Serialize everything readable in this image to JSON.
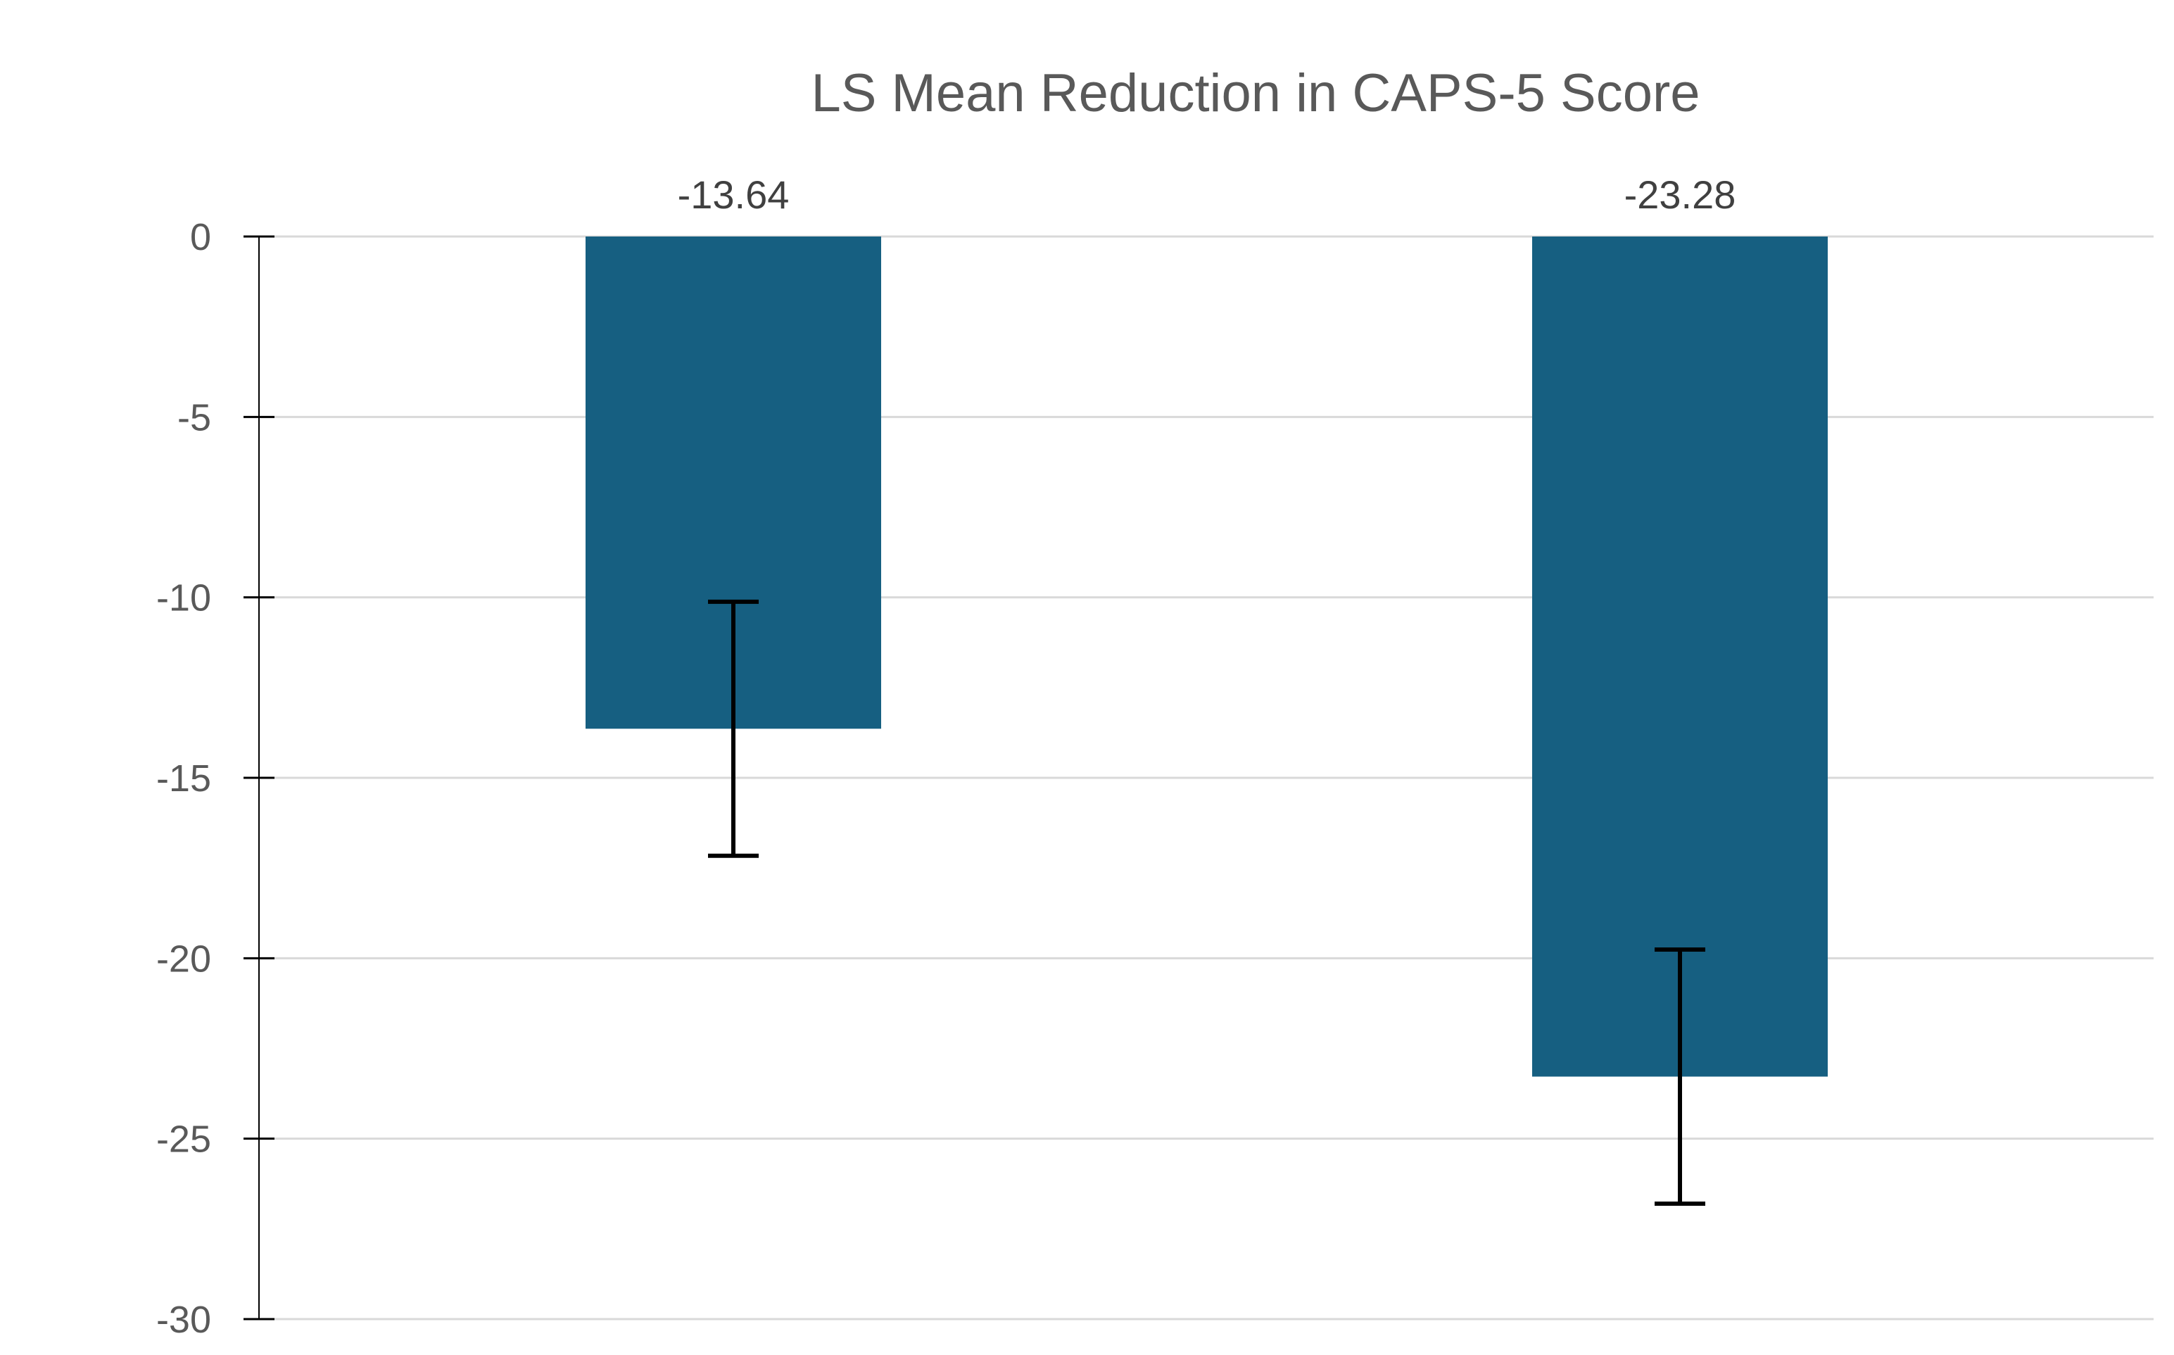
{
  "chart_data": {
    "type": "bar",
    "title": "LS Mean Reduction in CAPS-5 Score",
    "xlabel": "",
    "ylabel": "",
    "categories": [
      "",
      ""
    ],
    "values": [
      -13.64,
      -23.28
    ],
    "data_labels": [
      "-13.64",
      "-23.28"
    ],
    "error_bars": [
      3.52,
      3.52
    ],
    "ylim": [
      -30,
      0
    ],
    "yticks": [
      0,
      -5,
      -10,
      -15,
      -20,
      -25,
      -30
    ],
    "ytick_labels": [
      "0",
      "-5",
      "-10",
      "-15",
      "-20",
      "-25",
      "-30"
    ],
    "grid": true,
    "legend": "none",
    "colors": {
      "bar": "#165F81",
      "error_bar": "#000000",
      "grid": "#D9D9D9",
      "text": "#595959"
    }
  }
}
